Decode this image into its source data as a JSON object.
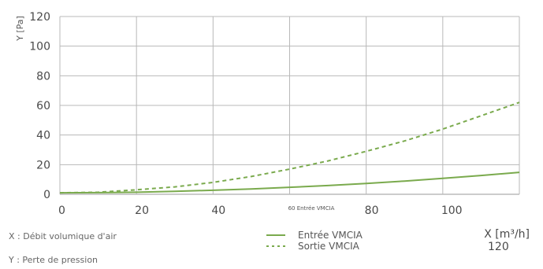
{
  "chart_data": {
    "type": "line",
    "ylabel": "Y [Pa]",
    "xlabel": "X [m³/h]",
    "xlim": [
      0,
      120
    ],
    "ylim": [
      0,
      120
    ],
    "x_ticks": [
      0,
      20,
      40,
      80,
      100
    ],
    "y_ticks": [
      0,
      20,
      40,
      60,
      80,
      100,
      120
    ],
    "x_end_label": "120",
    "annotation": "60 Entrée VMCIA",
    "grid": true,
    "legend_position": "bottom",
    "series": [
      {
        "name": "Entrée VMCIA",
        "style": "solid",
        "color": "#7aaa4d",
        "x": [
          0,
          10,
          20,
          30,
          40,
          50,
          60,
          70,
          80,
          90,
          100,
          110,
          120
        ],
        "y": [
          1,
          1.1,
          1.4,
          2.0,
          2.7,
          3.6,
          4.7,
          5.9,
          7.3,
          8.9,
          10.7,
          12.7,
          14.8
        ]
      },
      {
        "name": "Sortie VMCIA",
        "style": "dashed",
        "color": "#7aaa4d",
        "x": [
          0,
          10,
          20,
          30,
          40,
          50,
          60,
          70,
          80,
          90,
          100,
          110,
          120
        ],
        "y": [
          1,
          1.4,
          3,
          5,
          8,
          12,
          17,
          22.5,
          29,
          36,
          44,
          53,
          62
        ]
      }
    ]
  },
  "descriptions": {
    "x": "X : Débit volumique d'air",
    "y": "Y : Perte de pression"
  }
}
